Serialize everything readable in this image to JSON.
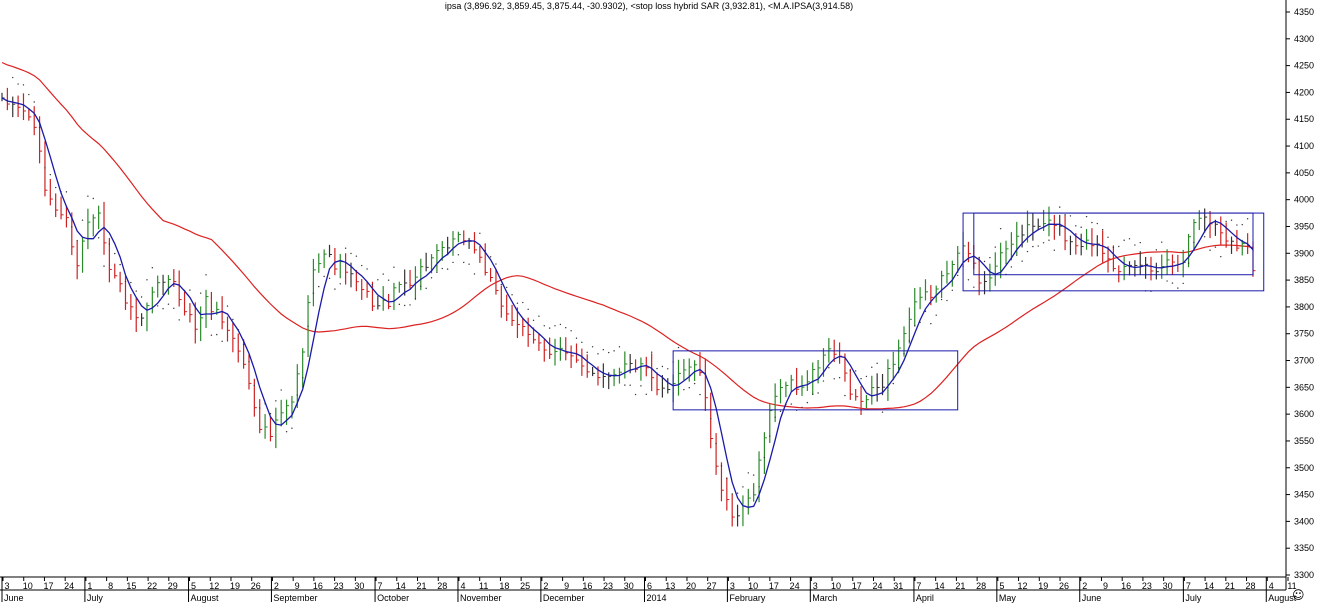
{
  "title": "ipsa (3,896.92, 3,859.45, 3,875.44, -30.9302), <stop loss hybrid SAR (3,932.81), <M.A.IPSA(3,914.58)",
  "colors": {
    "up": "#2a8a2a",
    "down": "#cc2222",
    "neutral": "#333333",
    "fast_ma": "#1a1aaa",
    "slow_ma": "#dd2222",
    "boxes": "#1a1aaa",
    "sar": "#333333"
  },
  "smiley_glyph": "☺",
  "chart_data": {
    "type": "line",
    "title": "ipsa (3,896.92, 3,859.45, 3,875.44, -30.9302), <stop loss hybrid SAR (3,932.81), <M.A.IPSA(3,914.58)",
    "ylim": [
      3300,
      4380
    ],
    "y_ticks": [
      3300,
      3350,
      3400,
      3450,
      3500,
      3550,
      3600,
      3650,
      3700,
      3750,
      3800,
      3850,
      3900,
      3950,
      4000,
      4050,
      4100,
      4150,
      4200,
      4250,
      4300,
      4350
    ],
    "x_day_labels": [
      "3",
      "10",
      "17",
      "24",
      "1",
      "8",
      "15",
      "22",
      "29",
      "5",
      "12",
      "19",
      "26",
      "2",
      "9",
      "16",
      "23",
      "30",
      "7",
      "14",
      "21",
      "28",
      "4",
      "11",
      "18",
      "25",
      "2",
      "9",
      "16",
      "23",
      "30",
      "6",
      "13",
      "20",
      "27",
      "3",
      "10",
      "17",
      "24",
      "3",
      "10",
      "17",
      "24",
      "31",
      "7",
      "14",
      "21",
      "28",
      "5",
      "12",
      "19",
      "26",
      "2",
      "9",
      "16",
      "23",
      "30",
      "7",
      "14",
      "21",
      "28",
      "4",
      "11"
    ],
    "x_month_labels": [
      "June",
      "July",
      "August",
      "September",
      "October",
      "November",
      "December",
      "2014",
      "February",
      "March",
      "April",
      "May",
      "June",
      "July",
      "August"
    ],
    "close_anchors": [
      [
        0,
        4180
      ],
      [
        3,
        4175
      ],
      [
        6,
        4140
      ],
      [
        8,
        4020
      ],
      [
        10,
        3985
      ],
      [
        12,
        3960
      ],
      [
        14,
        3880
      ],
      [
        16,
        3960
      ],
      [
        18,
        3985
      ],
      [
        20,
        3870
      ],
      [
        22,
        3840
      ],
      [
        24,
        3790
      ],
      [
        26,
        3770
      ],
      [
        28,
        3820
      ],
      [
        30,
        3850
      ],
      [
        32,
        3840
      ],
      [
        34,
        3800
      ],
      [
        36,
        3760
      ],
      [
        38,
        3810
      ],
      [
        40,
        3790
      ],
      [
        42,
        3760
      ],
      [
        44,
        3720
      ],
      [
        46,
        3660
      ],
      [
        48,
        3580
      ],
      [
        50,
        3560
      ],
      [
        52,
        3600
      ],
      [
        54,
        3620
      ],
      [
        56,
        3720
      ],
      [
        58,
        3880
      ],
      [
        60,
        3900
      ],
      [
        62,
        3880
      ],
      [
        64,
        3870
      ],
      [
        66,
        3840
      ],
      [
        68,
        3820
      ],
      [
        70,
        3800
      ],
      [
        72,
        3810
      ],
      [
        74,
        3840
      ],
      [
        76,
        3850
      ],
      [
        78,
        3870
      ],
      [
        80,
        3890
      ],
      [
        82,
        3900
      ],
      [
        84,
        3920
      ],
      [
        86,
        3930
      ],
      [
        88,
        3910
      ],
      [
        90,
        3870
      ],
      [
        92,
        3820
      ],
      [
        94,
        3790
      ],
      [
        96,
        3770
      ],
      [
        98,
        3740
      ],
      [
        100,
        3730
      ],
      [
        102,
        3720
      ],
      [
        104,
        3720
      ],
      [
        106,
        3700
      ],
      [
        108,
        3690
      ],
      [
        110,
        3680
      ],
      [
        112,
        3670
      ],
      [
        114,
        3680
      ],
      [
        116,
        3690
      ],
      [
        118,
        3690
      ],
      [
        120,
        3680
      ],
      [
        122,
        3640
      ],
      [
        124,
        3650
      ],
      [
        126,
        3680
      ],
      [
        128,
        3690
      ],
      [
        130,
        3680
      ],
      [
        132,
        3560
      ],
      [
        134,
        3460
      ],
      [
        136,
        3400
      ],
      [
        138,
        3420
      ],
      [
        140,
        3460
      ],
      [
        142,
        3560
      ],
      [
        144,
        3640
      ],
      [
        146,
        3660
      ],
      [
        148,
        3650
      ],
      [
        150,
        3660
      ],
      [
        152,
        3690
      ],
      [
        154,
        3720
      ],
      [
        156,
        3700
      ],
      [
        158,
        3640
      ],
      [
        160,
        3620
      ],
      [
        162,
        3640
      ],
      [
        164,
        3660
      ],
      [
        166,
        3700
      ],
      [
        168,
        3750
      ],
      [
        170,
        3800
      ],
      [
        172,
        3820
      ],
      [
        174,
        3830
      ],
      [
        176,
        3870
      ],
      [
        178,
        3910
      ],
      [
        180,
        3900
      ],
      [
        182,
        3850
      ],
      [
        184,
        3860
      ],
      [
        186,
        3890
      ],
      [
        188,
        3920
      ],
      [
        190,
        3940
      ],
      [
        192,
        3950
      ],
      [
        194,
        3950
      ],
      [
        196,
        3960
      ],
      [
        198,
        3930
      ],
      [
        200,
        3920
      ],
      [
        202,
        3920
      ],
      [
        204,
        3920
      ],
      [
        206,
        3900
      ],
      [
        208,
        3860
      ],
      [
        210,
        3870
      ],
      [
        212,
        3880
      ],
      [
        214,
        3870
      ],
      [
        216,
        3880
      ],
      [
        218,
        3890
      ],
      [
        220,
        3890
      ],
      [
        222,
        3960
      ],
      [
        224,
        3970
      ],
      [
        226,
        3950
      ],
      [
        228,
        3930
      ],
      [
        230,
        3920
      ],
      [
        232,
        3910
      ],
      [
        233,
        3875
      ]
    ],
    "series": [
      {
        "name": "ipsa",
        "kind": "ohlc"
      },
      {
        "name": "stop loss hybrid SAR",
        "kind": "dots"
      },
      {
        "name": "M.A.IPSA",
        "kind": "line"
      }
    ],
    "rectangles": [
      {
        "x_from": 125,
        "x_to": 178,
        "y_from": 3608,
        "y_to": 3718
      },
      {
        "x_from": 181,
        "x_to": 233,
        "y_from": 3860,
        "y_to": 3975
      },
      {
        "x_from": 179,
        "x_to": 235,
        "y_from": 3830,
        "y_to": 3975
      }
    ],
    "grid": false
  }
}
